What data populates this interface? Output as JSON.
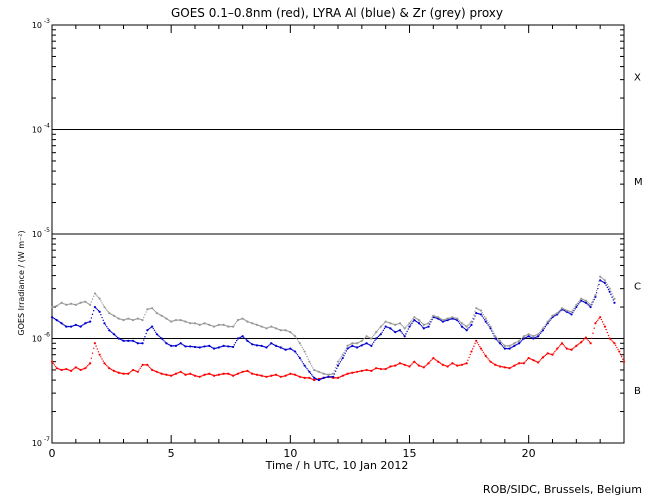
{
  "chart_data": {
    "type": "scatter",
    "title": "GOES 0.1–0.8nm (red), LYRA Al (blue) & Zr (grey) proxy",
    "xlabel": "Time / h UTC, 10 Jan 2012",
    "ylabel": "GOES Irradiance / (W m⁻²)",
    "xlim": [
      0,
      24
    ],
    "ylim": [
      1e-07,
      0.001
    ],
    "yscale": "log",
    "x_ticks": [
      0,
      5,
      10,
      15,
      20
    ],
    "x_tick_labels": [
      "0",
      "5",
      "10",
      "15",
      "20"
    ],
    "y_ticks": [
      1e-07,
      1e-06,
      1e-05,
      0.0001,
      0.001
    ],
    "y_tick_labels": [
      {
        "base": "10",
        "exp": "-7"
      },
      {
        "base": "10",
        "exp": "-6"
      },
      {
        "base": "10",
        "exp": "-5"
      },
      {
        "base": "10",
        "exp": "-4"
      },
      {
        "base": "10",
        "exp": "-3"
      }
    ],
    "flare_class_lines": [
      1e-06,
      1e-05,
      0.0001
    ],
    "flare_classes": [
      {
        "label": "B",
        "y": 3.2e-07
      },
      {
        "label": "C",
        "y": 3.2e-06
      },
      {
        "label": "M",
        "y": 3.2e-05
      },
      {
        "label": "X",
        "y": 0.00032
      }
    ],
    "grid": false,
    "series": [
      {
        "color": "#ff0000",
        "x": [
          0.0,
          0.2,
          0.4,
          0.6,
          0.8,
          1.0,
          1.2,
          1.4,
          1.6,
          1.8,
          2.0,
          2.2,
          2.4,
          2.6,
          2.8,
          3.0,
          3.2,
          3.4,
          3.6,
          3.8,
          4.0,
          4.2,
          4.4,
          4.6,
          4.8,
          5.0,
          5.2,
          5.4,
          5.6,
          5.8,
          6.0,
          6.2,
          6.4,
          6.6,
          6.8,
          7.0,
          7.2,
          7.4,
          7.6,
          7.8,
          8.0,
          8.2,
          8.4,
          8.6,
          8.8,
          9.0,
          9.2,
          9.4,
          9.6,
          9.8,
          10.0,
          10.2,
          10.4,
          10.6,
          10.8,
          11.0,
          11.2,
          11.4,
          11.6,
          11.8,
          12.0,
          12.2,
          12.4,
          12.6,
          12.8,
          13.0,
          13.2,
          13.4,
          13.6,
          13.8,
          14.0,
          14.2,
          14.4,
          14.6,
          14.8,
          15.0,
          15.2,
          15.4,
          15.6,
          15.8,
          16.0,
          16.2,
          16.4,
          16.6,
          16.8,
          17.0,
          17.2,
          17.4,
          17.6,
          17.8,
          18.0,
          18.2,
          18.4,
          18.6,
          18.8,
          19.0,
          19.2,
          19.4,
          19.6,
          19.8,
          20.0,
          20.2,
          20.4,
          20.6,
          20.8,
          21.0,
          21.2,
          21.4,
          21.6,
          21.8,
          22.0,
          22.2,
          22.4,
          22.6,
          22.8,
          23.0,
          23.2,
          23.4,
          23.6,
          23.8,
          24.0
        ],
        "y": [
          6e-07,
          5.2e-07,
          5e-07,
          5.1e-07,
          4.9e-07,
          5.3e-07,
          5e-07,
          5.2e-07,
          5.8e-07,
          9e-07,
          7e-07,
          5.8e-07,
          5.2e-07,
          4.9e-07,
          4.7e-07,
          4.6e-07,
          4.6e-07,
          5e-07,
          4.8e-07,
          5.6e-07,
          5.6e-07,
          5e-07,
          4.8e-07,
          4.6e-07,
          4.5e-07,
          4.4e-07,
          4.6e-07,
          4.8e-07,
          4.5e-07,
          4.6e-07,
          4.4e-07,
          4.3e-07,
          4.5e-07,
          4.6e-07,
          4.4e-07,
          4.5e-07,
          4.6e-07,
          4.6e-07,
          4.4e-07,
          4.6e-07,
          4.8e-07,
          4.9e-07,
          4.6e-07,
          4.5e-07,
          4.4e-07,
          4.3e-07,
          4.4e-07,
          4.5e-07,
          4.3e-07,
          4.4e-07,
          4.6e-07,
          4.5e-07,
          4.3e-07,
          4.2e-07,
          4.2e-07,
          4e-07,
          4.1e-07,
          4.2e-07,
          4.3e-07,
          4.2e-07,
          4.2e-07,
          4.4e-07,
          4.6e-07,
          4.7e-07,
          4.8e-07,
          4.9e-07,
          5e-07,
          4.9e-07,
          5.2e-07,
          5.1e-07,
          5.1e-07,
          5.4e-07,
          5.5e-07,
          5.8e-07,
          5.6e-07,
          5.4e-07,
          6e-07,
          5.5e-07,
          5.3e-07,
          5.8e-07,
          6.5e-07,
          6e-07,
          5.6e-07,
          5.4e-07,
          5.8e-07,
          5.5e-07,
          5.6e-07,
          5.8e-07,
          7.5e-07,
          9.5e-07,
          8e-07,
          6.8e-07,
          6e-07,
          5.6e-07,
          5.4e-07,
          5.3e-07,
          5.2e-07,
          5.5e-07,
          5.8e-07,
          5.8e-07,
          6.5e-07,
          6.2e-07,
          5.9e-07,
          6.6e-07,
          7.2e-07,
          7e-07,
          8e-07,
          9e-07,
          8e-07,
          7.8e-07,
          8.5e-07,
          9.2e-07,
          1.02e-06,
          9e-07,
          1.4e-06,
          1.6e-06,
          1.3e-06,
          1e-06,
          9e-07,
          7.5e-07,
          6e-07
        ]
      },
      {
        "color": "#0000cc",
        "x": [
          0.0,
          0.2,
          0.4,
          0.6,
          0.8,
          1.0,
          1.2,
          1.4,
          1.6,
          1.8,
          2.0,
          2.2,
          2.4,
          2.6,
          2.8,
          3.0,
          3.2,
          3.4,
          3.6,
          3.8,
          4.0,
          4.2,
          4.4,
          4.6,
          4.8,
          5.0,
          5.2,
          5.4,
          5.6,
          5.8,
          6.0,
          6.2,
          6.4,
          6.6,
          6.8,
          7.0,
          7.2,
          7.4,
          7.6,
          7.8,
          8.0,
          8.2,
          8.4,
          8.6,
          8.8,
          9.0,
          9.2,
          9.4,
          9.6,
          9.8,
          10.0,
          10.2,
          10.4,
          10.6,
          10.8,
          11.0,
          11.2,
          11.4,
          11.6,
          11.8,
          12.0,
          12.2,
          12.4,
          12.6,
          12.8,
          13.0,
          13.2,
          13.4,
          13.6,
          13.8,
          14.0,
          14.2,
          14.4,
          14.6,
          14.8,
          15.0,
          15.2,
          15.4,
          15.6,
          15.8,
          16.0,
          16.2,
          16.4,
          16.6,
          16.8,
          17.0,
          17.2,
          17.4,
          17.6,
          17.8,
          18.0,
          18.2,
          18.4,
          18.6,
          18.8,
          19.0,
          19.2,
          19.4,
          19.6,
          19.8,
          20.0,
          20.2,
          20.4,
          20.6,
          20.8,
          21.0,
          21.2,
          21.4,
          21.6,
          21.8,
          22.0,
          22.2,
          22.4,
          22.6,
          22.8,
          23.0,
          23.2,
          23.4,
          23.6
        ],
        "y": [
          1.6e-06,
          1.5e-06,
          1.4e-06,
          1.3e-06,
          1.3e-06,
          1.35e-06,
          1.3e-06,
          1.4e-06,
          1.45e-06,
          2e-06,
          1.8e-06,
          1.4e-06,
          1.2e-06,
          1.1e-06,
          1e-06,
          9.5e-07,
          9.5e-07,
          9.5e-07,
          9e-07,
          9e-07,
          1.2e-06,
          1.3e-06,
          1.1e-06,
          1e-06,
          9e-07,
          8.5e-07,
          8.5e-07,
          9e-07,
          8.4e-07,
          8.4e-07,
          8.3e-07,
          8.2e-07,
          8.4e-07,
          8.5e-07,
          8e-07,
          8.2e-07,
          8.5e-07,
          8.4e-07,
          8.3e-07,
          1e-06,
          1.05e-06,
          9.5e-07,
          8.8e-07,
          8.6e-07,
          8.5e-07,
          8.2e-07,
          9e-07,
          8.5e-07,
          8.2e-07,
          7.8e-07,
          8e-07,
          7.5e-07,
          6.5e-07,
          5.5e-07,
          4.8e-07,
          4.2e-07,
          4e-07,
          4.2e-07,
          4.3e-07,
          4.3e-07,
          5.5e-07,
          6.5e-07,
          8e-07,
          8.5e-07,
          8.2e-07,
          8.6e-07,
          9e-07,
          8.5e-07,
          1e-06,
          1.1e-06,
          1.3e-06,
          1.25e-06,
          1.15e-06,
          1.2e-06,
          1.05e-06,
          1.3e-06,
          1.5e-06,
          1.4e-06,
          1.25e-06,
          1.3e-06,
          1.6e-06,
          1.55e-06,
          1.45e-06,
          1.5e-06,
          1.55e-06,
          1.5e-06,
          1.3e-06,
          1.2e-06,
          1.35e-06,
          1.75e-06,
          1.7e-06,
          1.45e-06,
          1.25e-06,
          1e-06,
          9e-07,
          8e-07,
          8e-07,
          8.5e-07,
          9e-07,
          1e-06,
          1.05e-06,
          1e-06,
          1.05e-06,
          1.2e-06,
          1.4e-06,
          1.6e-06,
          1.7e-06,
          1.9e-06,
          1.8e-06,
          1.7e-06,
          2e-06,
          2.3e-06,
          2.2e-06,
          2e-06,
          2.5e-06,
          3.6e-06,
          3.4e-06,
          2.8e-06,
          2.2e-06
        ]
      },
      {
        "color": "#999999",
        "x": [
          0.0,
          0.2,
          0.4,
          0.6,
          0.8,
          1.0,
          1.2,
          1.4,
          1.6,
          1.8,
          2.0,
          2.2,
          2.4,
          2.6,
          2.8,
          3.0,
          3.2,
          3.4,
          3.6,
          3.8,
          4.0,
          4.2,
          4.4,
          4.6,
          4.8,
          5.0,
          5.2,
          5.4,
          5.6,
          5.8,
          6.0,
          6.2,
          6.4,
          6.6,
          6.8,
          7.0,
          7.2,
          7.4,
          7.6,
          7.8,
          8.0,
          8.2,
          8.4,
          8.6,
          8.8,
          9.0,
          9.2,
          9.4,
          9.6,
          9.8,
          10.0,
          10.2,
          10.4,
          10.6,
          10.8,
          11.0,
          11.2,
          11.4,
          11.6,
          11.8,
          12.0,
          12.2,
          12.4,
          12.6,
          12.8,
          13.0,
          13.2,
          13.4,
          13.6,
          13.8,
          14.0,
          14.2,
          14.4,
          14.6,
          14.8,
          15.0,
          15.2,
          15.4,
          15.6,
          15.8,
          16.0,
          16.2,
          16.4,
          16.6,
          16.8,
          17.0,
          17.2,
          17.4,
          17.6,
          17.8,
          18.0,
          18.2,
          18.4,
          18.6,
          18.8,
          19.0,
          19.2,
          19.4,
          19.6,
          19.8,
          20.0,
          20.2,
          20.4,
          20.6,
          20.8,
          21.0,
          21.2,
          21.4,
          21.6,
          21.8,
          22.0,
          22.2,
          22.4,
          22.6,
          22.8,
          23.0,
          23.2,
          23.4,
          23.6
        ],
        "y": [
          2e-06,
          2.05e-06,
          2.2e-06,
          2.1e-06,
          2.15e-06,
          2.1e-06,
          2.2e-06,
          2.25e-06,
          2.1e-06,
          2.7e-06,
          2.4e-06,
          2e-06,
          1.75e-06,
          1.65e-06,
          1.55e-06,
          1.5e-06,
          1.55e-06,
          1.5e-06,
          1.55e-06,
          1.5e-06,
          1.9e-06,
          1.95e-06,
          1.75e-06,
          1.65e-06,
          1.55e-06,
          1.45e-06,
          1.5e-06,
          1.5e-06,
          1.45e-06,
          1.4e-06,
          1.4e-06,
          1.35e-06,
          1.4e-06,
          1.35e-06,
          1.3e-06,
          1.35e-06,
          1.35e-06,
          1.3e-06,
          1.3e-06,
          1.5e-06,
          1.55e-06,
          1.45e-06,
          1.4e-06,
          1.35e-06,
          1.3e-06,
          1.25e-06,
          1.3e-06,
          1.25e-06,
          1.2e-06,
          1.2e-06,
          1.15e-06,
          1.05e-06,
          9e-07,
          7.5e-07,
          6e-07,
          5e-07,
          4.8e-07,
          4.6e-07,
          4.5e-07,
          4.6e-07,
          6e-07,
          7e-07,
          8.5e-07,
          9e-07,
          9e-07,
          9.5e-07,
          1.05e-06,
          1e-06,
          1.15e-06,
          1.3e-06,
          1.45e-06,
          1.4e-06,
          1.35e-06,
          1.4e-06,
          1.25e-06,
          1.4e-06,
          1.6e-06,
          1.5e-06,
          1.35e-06,
          1.4e-06,
          1.65e-06,
          1.6e-06,
          1.5e-06,
          1.55e-06,
          1.6e-06,
          1.55e-06,
          1.4e-06,
          1.3e-06,
          1.45e-06,
          1.95e-06,
          1.85e-06,
          1.55e-06,
          1.3e-06,
          1.05e-06,
          9.5e-07,
          8.5e-07,
          8.5e-07,
          9e-07,
          9.5e-07,
          1.05e-06,
          1.1e-06,
          1.05e-06,
          1.1e-06,
          1.25e-06,
          1.45e-06,
          1.65e-06,
          1.75e-06,
          1.95e-06,
          1.85e-06,
          1.8e-06,
          2.1e-06,
          2.4e-06,
          2.3e-06,
          2.1e-06,
          2.6e-06,
          3.9e-06,
          3.6e-06,
          3e-06,
          2.4e-06
        ]
      }
    ]
  },
  "footer": {
    "credit": "ROB/SIDC, Brussels, Belgium"
  }
}
